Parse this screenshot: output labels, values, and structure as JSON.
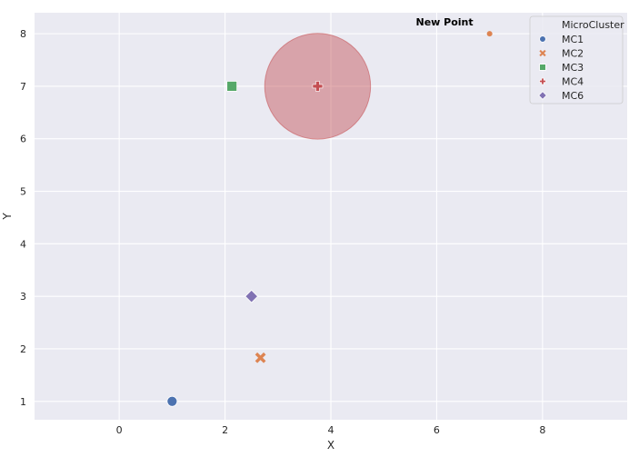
{
  "chart_data": {
    "type": "scatter",
    "xlabel": "X",
    "ylabel": "Y",
    "xlim": [
      -1.6,
      9.6
    ],
    "ylim": [
      0.65,
      8.4
    ],
    "xticks": [
      0,
      2,
      4,
      6,
      8
    ],
    "yticks": [
      1,
      2,
      3,
      4,
      5,
      6,
      7,
      8
    ],
    "grid": true,
    "legend": {
      "title": "MicroCluster",
      "placement": "top-right",
      "entries": [
        "MC1",
        "MC2",
        "MC3",
        "MC4",
        "MC6"
      ]
    },
    "series": [
      {
        "name": "MC1",
        "marker": "circle",
        "color": "#4c72b0",
        "points": [
          {
            "x": 1.0,
            "y": 1.0
          }
        ]
      },
      {
        "name": "MC2",
        "marker": "x",
        "color": "#dd8452",
        "points": [
          {
            "x": 2.67,
            "y": 1.83
          }
        ]
      },
      {
        "name": "MC3",
        "marker": "square",
        "color": "#55a868",
        "points": [
          {
            "x": 2.13,
            "y": 7.0
          }
        ]
      },
      {
        "name": "MC4",
        "marker": "plus",
        "color": "#c44e52",
        "points": [
          {
            "x": 3.75,
            "y": 7.0
          }
        ]
      },
      {
        "name": "MC6",
        "marker": "diamond",
        "color": "#8172b3",
        "points": [
          {
            "x": 2.5,
            "y": 3.0
          }
        ]
      }
    ],
    "radius_circle": {
      "cluster": "MC4",
      "center": {
        "x": 3.75,
        "y": 7.0
      },
      "radius": 1.0,
      "color": "#c44e52"
    },
    "new_point": {
      "x": 7.0,
      "y": 8.0,
      "color": "#dd8452",
      "label": "New Point"
    }
  }
}
